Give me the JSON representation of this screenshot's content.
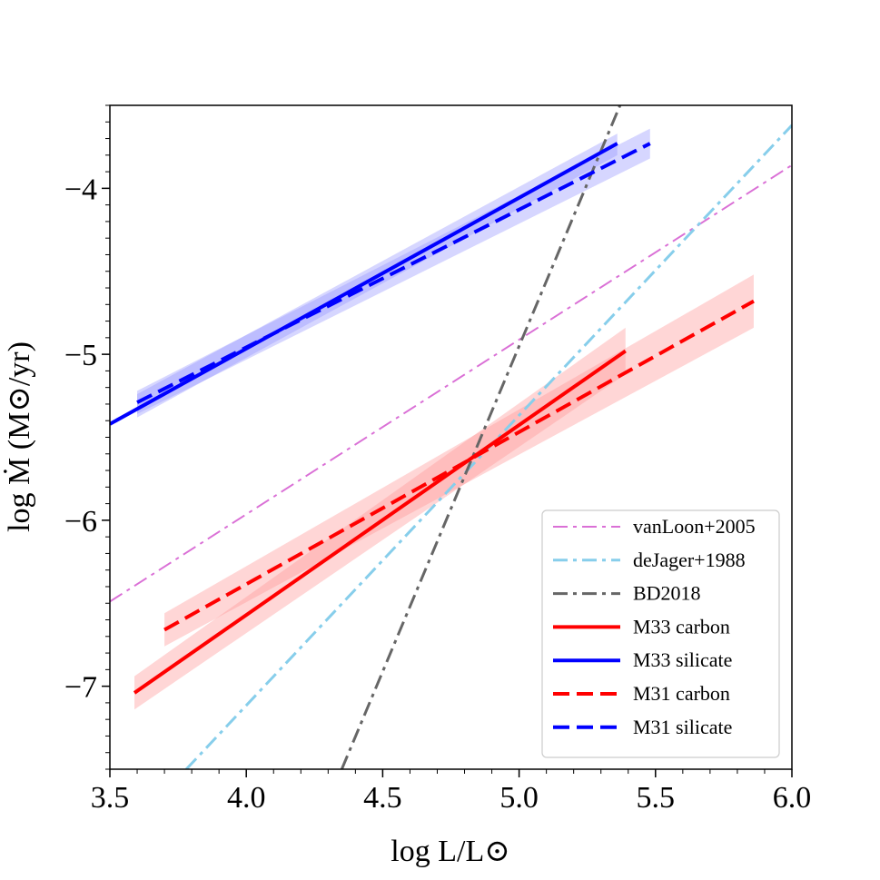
{
  "chart_data": {
    "type": "line",
    "title": "",
    "xlabel": "log L/L⊙",
    "ylabel": "log Ṁ  (M⊙/yr)",
    "xlim": [
      3.5,
      6.0
    ],
    "ylim": [
      -7.5,
      -3.5
    ],
    "xticks": [
      {
        "value": 3.5,
        "label": "3.5"
      },
      {
        "value": 4.0,
        "label": "4.0"
      },
      {
        "value": 4.5,
        "label": "4.5"
      },
      {
        "value": 5.0,
        "label": "5.0"
      },
      {
        "value": 5.5,
        "label": "5.5"
      },
      {
        "value": 6.0,
        "label": "6.0"
      }
    ],
    "yticks": [
      {
        "value": -7,
        "label": "−7"
      },
      {
        "value": -6,
        "label": "−6"
      },
      {
        "value": -5,
        "label": "−5"
      },
      {
        "value": -4,
        "label": "−4"
      }
    ],
    "legend_position": "lower-right",
    "series": [
      {
        "name": "vanLoon+2005",
        "color": "#da70d6",
        "style": "dashdot",
        "width": 2,
        "x": [
          3.5,
          6.0
        ],
        "y": [
          -6.49,
          -3.86
        ]
      },
      {
        "name": "deJager+1988",
        "color": "#87ceeb",
        "style": "dashdot",
        "width": 3,
        "x": [
          3.78,
          6.0
        ],
        "y": [
          -7.5,
          -3.62
        ]
      },
      {
        "name": "BD2018",
        "color": "#666666",
        "style": "dashdot",
        "width": 3,
        "x": [
          4.35,
          5.37
        ],
        "y": [
          -7.5,
          -3.5
        ]
      },
      {
        "name": "M33 carbon",
        "color": "#ff0000",
        "style": "solid",
        "width": 4,
        "x": [
          3.59,
          5.39
        ],
        "y": [
          -7.04,
          -4.98
        ],
        "band": {
          "color": "#ff9999",
          "x": [
            3.59,
            5.39
          ],
          "upper": [
            -6.94,
            -4.84
          ],
          "lower": [
            -7.14,
            -5.12
          ]
        }
      },
      {
        "name": "M33 silicate",
        "color": "#0000ff",
        "style": "solid",
        "width": 4,
        "x": [
          3.5,
          5.36
        ],
        "y": [
          -5.42,
          -3.73
        ],
        "band": {
          "color": "#9999ff",
          "x": [
            3.6,
            5.36
          ],
          "upper": [
            -5.24,
            -3.67
          ],
          "lower": [
            -5.38,
            -3.8
          ]
        }
      },
      {
        "name": "M31 carbon",
        "color": "#ff0000",
        "style": "dashed",
        "width": 4,
        "x": [
          3.7,
          5.86
        ],
        "y": [
          -6.66,
          -4.68
        ],
        "band": {
          "color": "#ff9999",
          "x": [
            3.7,
            5.86
          ],
          "upper": [
            -6.56,
            -4.52
          ],
          "lower": [
            -6.76,
            -4.84
          ]
        }
      },
      {
        "name": "M31 silicate",
        "color": "#0000ff",
        "style": "dashed",
        "width": 4,
        "x": [
          3.6,
          5.48
        ],
        "y": [
          -5.29,
          -3.73
        ],
        "band": {
          "color": "#9999ff",
          "x": [
            3.6,
            5.48
          ],
          "upper": [
            -5.22,
            -3.64
          ],
          "lower": [
            -5.36,
            -3.82
          ]
        }
      }
    ]
  }
}
